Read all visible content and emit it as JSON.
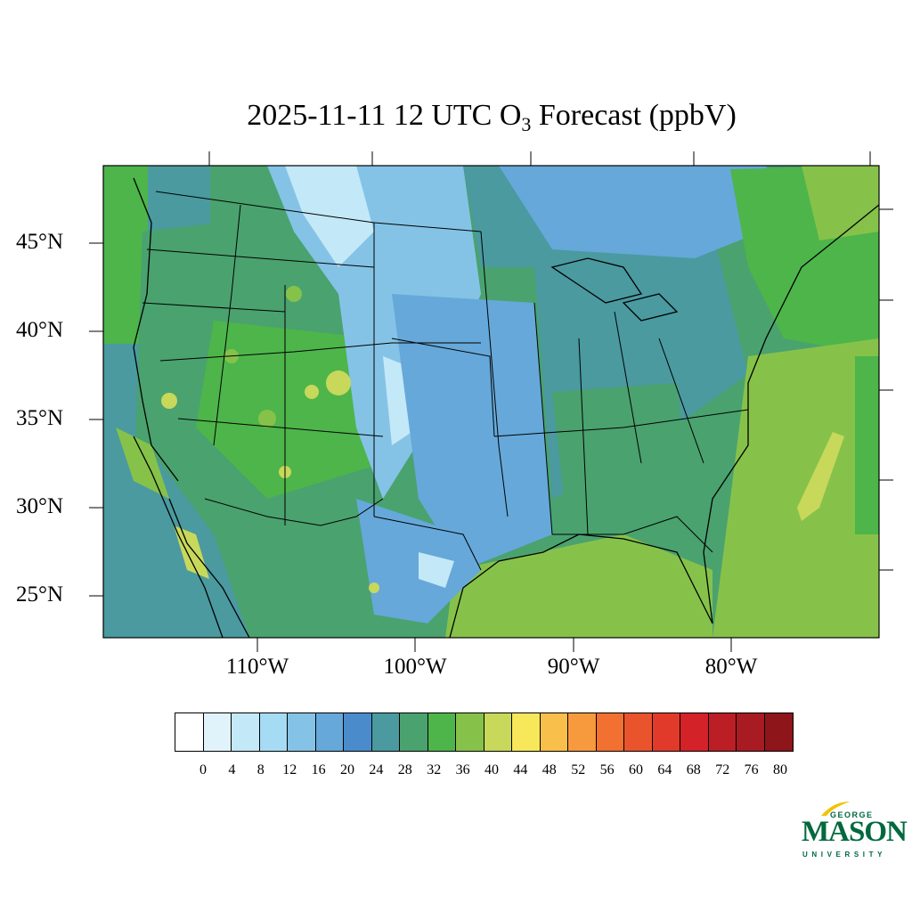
{
  "title": {
    "date": "2025-11-11",
    "hour": "12 UTC",
    "species_base": "O",
    "species_sub": "3",
    "suffix": "Forecast (ppbV)"
  },
  "map": {
    "region": "Contiguous United States",
    "lat_labels": [
      "45°N",
      "40°N",
      "35°N",
      "30°N",
      "25°N"
    ],
    "lon_labels": [
      "110°W",
      "100°W",
      "90°W",
      "80°W"
    ]
  },
  "colorbar": {
    "tick_labels": [
      "0",
      "4",
      "8",
      "12",
      "16",
      "20",
      "24",
      "28",
      "32",
      "36",
      "40",
      "44",
      "48",
      "52",
      "56",
      "60",
      "64",
      "68",
      "72",
      "76",
      "80"
    ],
    "colors": [
      "#ffffff",
      "#e0f3fb",
      "#c3e8f7",
      "#a5dcf4",
      "#85c3e6",
      "#66a8d9",
      "#4a8ccb",
      "#4a9aa0",
      "#4aa26f",
      "#4db54a",
      "#86c24a",
      "#c8d85a",
      "#f7e75a",
      "#f8c04a",
      "#f79a3e",
      "#f27030",
      "#ea542c",
      "#e13a2b",
      "#d42229",
      "#bb1e25",
      "#a91b22",
      "#8e1519"
    ]
  },
  "logo": {
    "top": "GEORGE",
    "middle": "MASON",
    "bottom": "UNIVERSITY",
    "color": "#00693e",
    "accent": "#f2c200"
  }
}
